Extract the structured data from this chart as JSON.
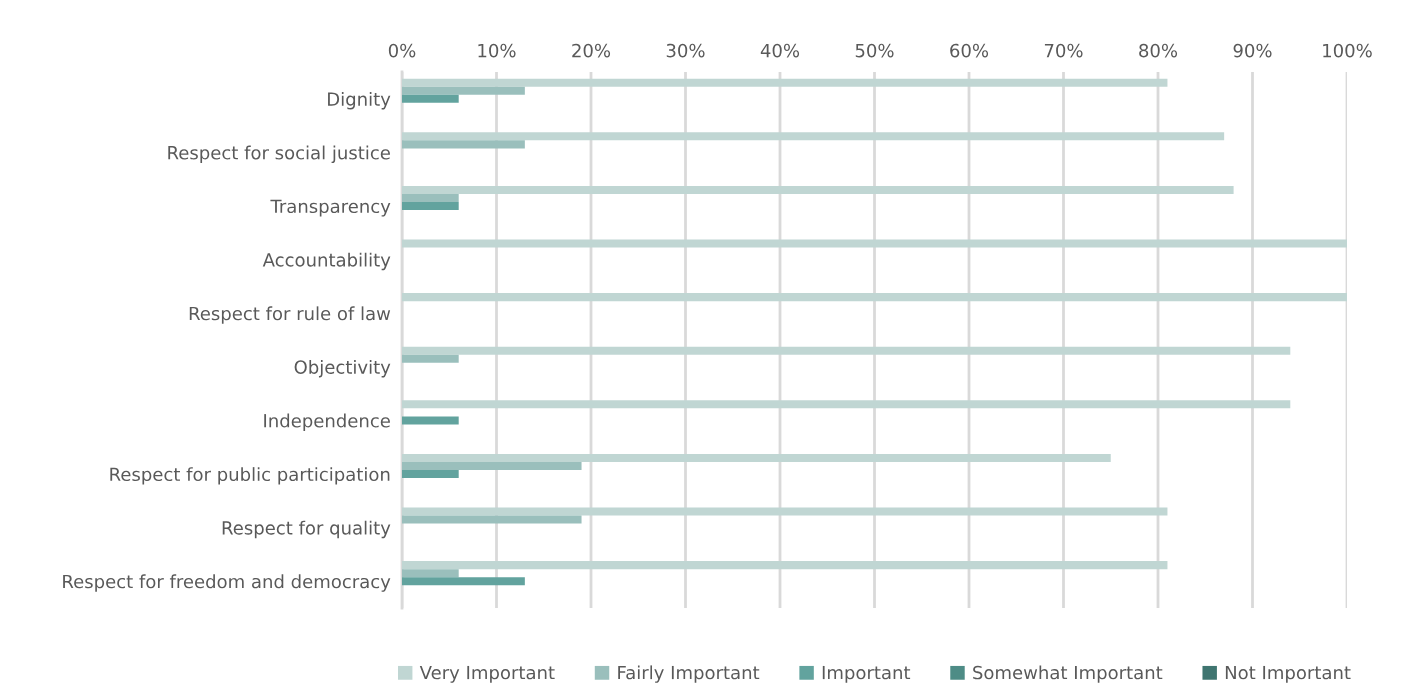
{
  "chart_data": {
    "type": "bar",
    "orientation": "horizontal",
    "categories": [
      "Dignity",
      "Respect for social justice",
      "Transparency",
      "Accountability",
      "Respect for rule of law",
      "Objectivity",
      "Independence",
      "Respect for public participation",
      "Respect for quality",
      "Respect for freedom and democracy"
    ],
    "series": [
      {
        "name": "Very Important",
        "color": "#c0d6d3",
        "values": [
          81,
          87,
          88,
          100,
          100,
          94,
          94,
          75,
          81,
          81
        ]
      },
      {
        "name": "Fairly Important",
        "color": "#9abfbc",
        "values": [
          13,
          13,
          6,
          null,
          null,
          6,
          null,
          19,
          19,
          6
        ]
      },
      {
        "name": "Important",
        "color": "#62a39e",
        "values": [
          6,
          null,
          6,
          null,
          null,
          null,
          6,
          6,
          null,
          13
        ]
      },
      {
        "name": "Somewhat Important",
        "color": "#4e8c86",
        "values": [
          null,
          null,
          null,
          null,
          null,
          null,
          null,
          null,
          null,
          null
        ]
      },
      {
        "name": "Not Important",
        "color": "#3f7570",
        "values": [
          null,
          null,
          null,
          null,
          null,
          null,
          null,
          null,
          null,
          null
        ]
      }
    ],
    "xlim": [
      0,
      100
    ],
    "xticks": [
      {
        "value": 0,
        "label": "0%"
      },
      {
        "value": 10,
        "label": "10%"
      },
      {
        "value": 20,
        "label": "20%"
      },
      {
        "value": 30,
        "label": "30%"
      },
      {
        "value": 40,
        "label": "40%"
      },
      {
        "value": 50,
        "label": "50%"
      },
      {
        "value": 60,
        "label": "60%"
      },
      {
        "value": 70,
        "label": "70%"
      },
      {
        "value": 80,
        "label": "80%"
      },
      {
        "value": 90,
        "label": "90%"
      },
      {
        "value": 100,
        "label": "100%"
      }
    ],
    "grid": "x",
    "legend": "bottom"
  }
}
